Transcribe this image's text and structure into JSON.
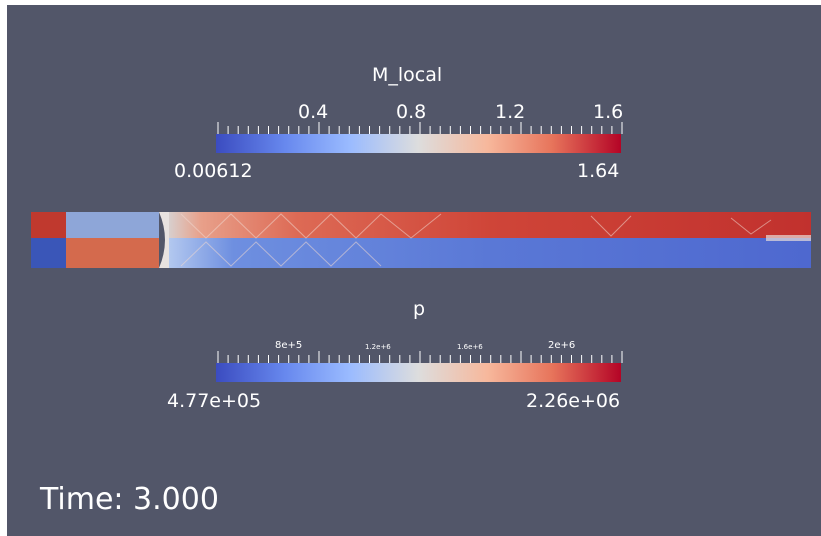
{
  "colors": {
    "background": "#525669",
    "cool": "#3b4cc0",
    "neutral": "#dddddd",
    "warm": "#b40426"
  },
  "scalar_bars": [
    {
      "title": "M_local",
      "min_label": "0.00612",
      "max_label": "1.64",
      "tick_labels": [
        "0.4",
        "0.8",
        "1.2",
        "1.6"
      ],
      "colormap": "cool-to-warm"
    },
    {
      "title": "p",
      "min_label": "4.77e+05",
      "max_label": "2.26e+06",
      "tick_labels": [
        "8e+5",
        "1.2e+6",
        "1.6e+6",
        "2e+6"
      ],
      "colormap": "cool-to-warm"
    }
  ],
  "annotation": {
    "time_text": "Time: 3.000"
  }
}
